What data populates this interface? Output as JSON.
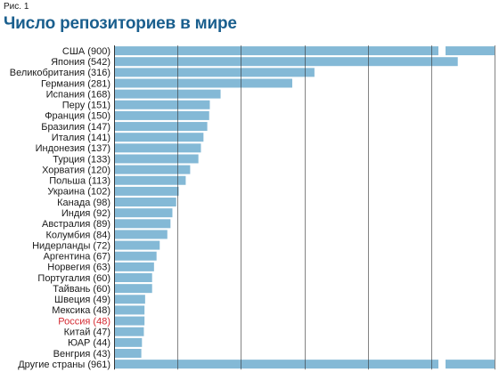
{
  "figure_label": "Рис. 1",
  "title": "Число репозиториев в мире",
  "colors": {
    "bar": "#84b9d6",
    "title": "#1a5f8e",
    "highlight_label": "#d42a32",
    "label": "#1a1a1a",
    "grid": "#333333"
  },
  "chart_data": {
    "type": "bar",
    "orientation": "horizontal",
    "axis_break": true,
    "grid": true,
    "xlim": [
      0,
      600
    ],
    "gridlines": [
      100,
      200,
      300,
      400,
      500,
      600
    ],
    "highlight": "Россия (48)",
    "categories": [
      "США (900)",
      "Япония (542)",
      "Великобритания (316)",
      "Германия (281)",
      "Испания (168)",
      "Перу (151)",
      "Франция (150)",
      "Бразилия (147)",
      "Италия (141)",
      "Индонезия (137)",
      "Турция (133)",
      "Хорватия (120)",
      "Польша (113)",
      "Украина (102)",
      "Канада (98)",
      "Индия (92)",
      "Австралия (89)",
      "Колумбия (84)",
      "Нидерланды (72)",
      "Аргентина (67)",
      "Норвегия (63)",
      "Португалия (60)",
      "Тайвань (60)",
      "Швеция (49)",
      "Мексика (48)",
      "Россия (48)",
      "Китай (47)",
      "ЮАР (44)",
      "Венгрия (43)",
      "Другие страны (961)"
    ],
    "values": [
      900,
      542,
      316,
      281,
      168,
      151,
      150,
      147,
      141,
      137,
      133,
      120,
      113,
      102,
      98,
      92,
      89,
      84,
      72,
      67,
      63,
      60,
      60,
      49,
      48,
      48,
      47,
      44,
      43,
      961
    ]
  }
}
